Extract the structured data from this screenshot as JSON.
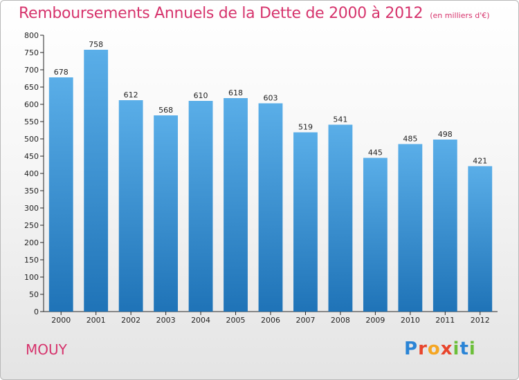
{
  "title": "Remboursements Annuels de la Dette de 2000 à 2012",
  "subtitle": "(en milliers d'€)",
  "commune": "MOUY",
  "logo": {
    "text": "Proxiti",
    "letters": [
      {
        "ch": "P",
        "color": "#2a84d6"
      },
      {
        "ch": "r",
        "color": "#e8452c"
      },
      {
        "ch": "o",
        "color": "#f5a623"
      },
      {
        "ch": "x",
        "color": "#e8452c"
      },
      {
        "ch": "i",
        "color": "#6cbf3a"
      },
      {
        "ch": "t",
        "color": "#2a84d6"
      },
      {
        "ch": "i",
        "color": "#6cbf3a"
      }
    ]
  },
  "colors": {
    "title": "#d6336c",
    "bar_top": "#5aaee8",
    "bar_bottom": "#1f73b7"
  },
  "chart_data": {
    "type": "bar",
    "title": "Remboursements Annuels de la Dette de 2000 à 2012",
    "subtitle": "(en milliers d'€)",
    "xlabel": "",
    "ylabel": "",
    "categories": [
      "2000",
      "2001",
      "2002",
      "2003",
      "2004",
      "2005",
      "2006",
      "2007",
      "2008",
      "2009",
      "2010",
      "2011",
      "2012"
    ],
    "values": [
      678,
      758,
      612,
      568,
      610,
      618,
      603,
      519,
      541,
      445,
      485,
      498,
      421
    ],
    "ylim": [
      0,
      800
    ],
    "yticks": [
      0,
      50,
      100,
      150,
      200,
      250,
      300,
      350,
      400,
      450,
      500,
      550,
      600,
      650,
      700,
      750,
      800
    ],
    "grid": false,
    "legend": "none"
  }
}
